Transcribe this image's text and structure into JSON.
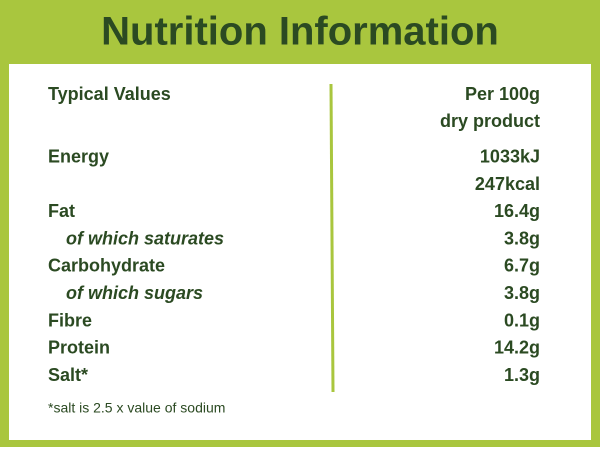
{
  "header": {
    "title": "Nutrition Information"
  },
  "table": {
    "header": {
      "label": "Typical Values",
      "value": [
        "Per 100g",
        "dry product"
      ]
    },
    "rows": [
      {
        "label": "Energy",
        "value": [
          "1033kJ",
          "247kcal"
        ]
      },
      {
        "label": "Fat",
        "value": [
          "16.4g"
        ]
      },
      {
        "label": "of which saturates",
        "value": [
          "3.8g"
        ],
        "sub": true
      },
      {
        "label": "Carbohydrate",
        "value": [
          "6.7g"
        ]
      },
      {
        "label": "of which sugars",
        "value": [
          "3.8g"
        ],
        "sub": true
      },
      {
        "label": "Fibre",
        "value": [
          "0.1g"
        ]
      },
      {
        "label": "Protein",
        "value": [
          "14.2g"
        ]
      },
      {
        "label": "Salt*",
        "value": [
          "1.3g"
        ]
      }
    ]
  },
  "footnote": "*salt is 2.5 x value of sodium"
}
